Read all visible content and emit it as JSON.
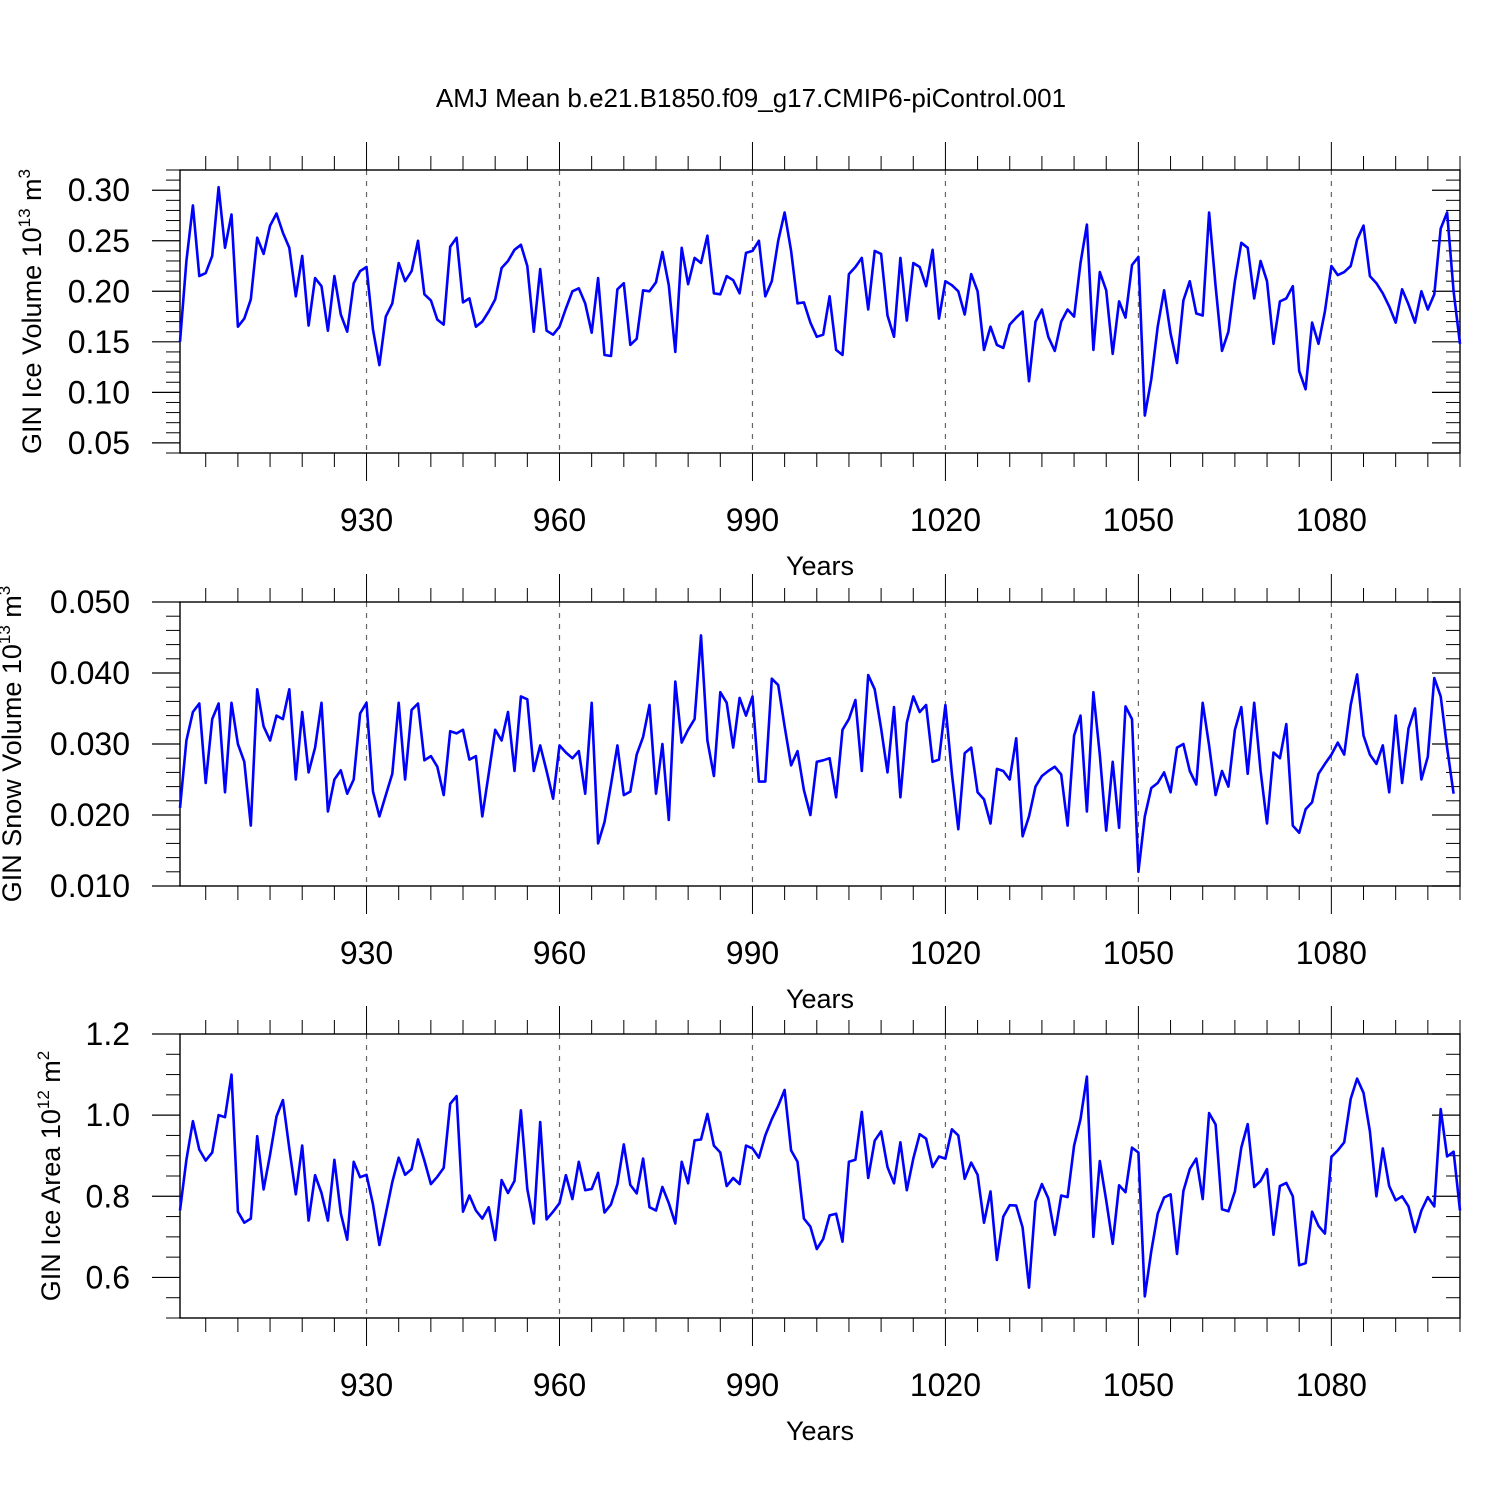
{
  "chart_data": {
    "title": "AMJ Mean b.e21.B1850.f09_g17.CMIP6-piControl.001",
    "line_color": "#0000ff",
    "grid_color": "#666666",
    "x": [
      901,
      902,
      903,
      904,
      905,
      906,
      907,
      908,
      909,
      910,
      911,
      912,
      913,
      914,
      915,
      916,
      917,
      918,
      919,
      920,
      921,
      922,
      923,
      924,
      925,
      926,
      927,
      928,
      929,
      930,
      931,
      932,
      933,
      934,
      935,
      936,
      937,
      938,
      939,
      940,
      941,
      942,
      943,
      944,
      945,
      946,
      947,
      948,
      949,
      950,
      951,
      952,
      953,
      954,
      955,
      956,
      957,
      958,
      959,
      960,
      961,
      962,
      963,
      964,
      965,
      966,
      967,
      968,
      969,
      970,
      971,
      972,
      973,
      974,
      975,
      976,
      977,
      978,
      979,
      980,
      981,
      982,
      983,
      984,
      985,
      986,
      987,
      988,
      989,
      990,
      991,
      992,
      993,
      994,
      995,
      996,
      997,
      998,
      999,
      1000,
      1001,
      1002,
      1003,
      1004,
      1005,
      1006,
      1007,
      1008,
      1009,
      1010,
      1011,
      1012,
      1013,
      1014,
      1015,
      1016,
      1017,
      1018,
      1019,
      1020,
      1021,
      1022,
      1023,
      1024,
      1025,
      1026,
      1027,
      1028,
      1029,
      1030,
      1031,
      1032,
      1033,
      1034,
      1035,
      1036,
      1037,
      1038,
      1039,
      1040,
      1041,
      1042,
      1043,
      1044,
      1045,
      1046,
      1047,
      1048,
      1049,
      1050,
      1051,
      1052,
      1053,
      1054,
      1055,
      1056,
      1057,
      1058,
      1059,
      1060,
      1061,
      1062,
      1063,
      1064,
      1065,
      1066,
      1067,
      1068,
      1069,
      1070,
      1071,
      1072,
      1073,
      1074,
      1075,
      1076,
      1077,
      1078,
      1079,
      1080,
      1081,
      1082,
      1083,
      1084,
      1085,
      1086,
      1087,
      1088,
      1089,
      1090,
      1091,
      1092,
      1093,
      1094,
      1095,
      1096,
      1097,
      1098,
      1099,
      1100
    ],
    "panels": [
      {
        "name": "ice-volume",
        "ylabel_main": "GIN Ice Volume 10",
        "ylabel_exp": "13",
        "ylabel_unit": " m",
        "ylabel_unit_exp": "3",
        "xlabel": "Years",
        "xlim": [
          901,
          1100
        ],
        "ylim": [
          0.04,
          0.32
        ],
        "yticks": [
          0.05,
          0.1,
          0.15,
          0.2,
          0.25,
          0.3
        ],
        "ytick_labels": [
          "0.05",
          "0.10",
          "0.15",
          "0.20",
          "0.25",
          "0.30"
        ],
        "yminor": [
          0.04,
          0.06,
          0.07,
          0.08,
          0.09,
          0.11,
          0.12,
          0.13,
          0.14,
          0.16,
          0.17,
          0.18,
          0.19,
          0.21,
          0.22,
          0.23,
          0.24,
          0.26,
          0.27,
          0.28,
          0.29,
          0.31,
          0.32
        ],
        "xticks": [
          930,
          960,
          990,
          1020,
          1050,
          1080
        ],
        "xtick_labels": [
          "930",
          "960",
          "990",
          "1020",
          "1050",
          "1080"
        ],
        "values": [
          0.15,
          0.23,
          0.285,
          0.215,
          0.218,
          0.235,
          0.303,
          0.243,
          0.276,
          0.165,
          0.173,
          0.192,
          0.253,
          0.237,
          0.265,
          0.277,
          0.258,
          0.243,
          0.195,
          0.235,
          0.166,
          0.213,
          0.205,
          0.161,
          0.215,
          0.177,
          0.16,
          0.208,
          0.22,
          0.224,
          0.162,
          0.127,
          0.175,
          0.188,
          0.228,
          0.21,
          0.22,
          0.25,
          0.197,
          0.191,
          0.172,
          0.167,
          0.244,
          0.253,
          0.189,
          0.193,
          0.165,
          0.17,
          0.18,
          0.192,
          0.223,
          0.23,
          0.241,
          0.246,
          0.225,
          0.16,
          0.222,
          0.161,
          0.157,
          0.165,
          0.183,
          0.2,
          0.203,
          0.188,
          0.159,
          0.213,
          0.137,
          0.136,
          0.202,
          0.208,
          0.147,
          0.153,
          0.201,
          0.2,
          0.209,
          0.239,
          0.206,
          0.14,
          0.243,
          0.207,
          0.233,
          0.228,
          0.255,
          0.198,
          0.197,
          0.215,
          0.211,
          0.198,
          0.238,
          0.24,
          0.25,
          0.195,
          0.21,
          0.25,
          0.278,
          0.24,
          0.188,
          0.189,
          0.169,
          0.155,
          0.157,
          0.195,
          0.142,
          0.137,
          0.217,
          0.224,
          0.233,
          0.182,
          0.24,
          0.237,
          0.176,
          0.155,
          0.233,
          0.171,
          0.228,
          0.224,
          0.205,
          0.241,
          0.173,
          0.21,
          0.206,
          0.2,
          0.177,
          0.217,
          0.2,
          0.142,
          0.165,
          0.147,
          0.144,
          0.167,
          0.174,
          0.18,
          0.111,
          0.17,
          0.182,
          0.155,
          0.141,
          0.17,
          0.182,
          0.175,
          0.228,
          0.266,
          0.142,
          0.219,
          0.201,
          0.138,
          0.19,
          0.174,
          0.226,
          0.234,
          0.077,
          0.113,
          0.165,
          0.201,
          0.158,
          0.129,
          0.191,
          0.21,
          0.178,
          0.176,
          0.278,
          0.205,
          0.141,
          0.16,
          0.21,
          0.248,
          0.243,
          0.193,
          0.23,
          0.21,
          0.148,
          0.19,
          0.193,
          0.205,
          0.121,
          0.103,
          0.169,
          0.148,
          0.18,
          0.225,
          0.216,
          0.219,
          0.225,
          0.251,
          0.265,
          0.215,
          0.208,
          0.198,
          0.185,
          0.169,
          0.202,
          0.187,
          0.169,
          0.2,
          0.182,
          0.197,
          0.262,
          0.278,
          0.2,
          0.148
        ]
      },
      {
        "name": "snow-volume",
        "ylabel_main": "GIN Snow Volume 10",
        "ylabel_exp": "13",
        "ylabel_unit": " m",
        "ylabel_unit_exp": "3",
        "xlabel": "Years",
        "xlim": [
          901,
          1100
        ],
        "ylim": [
          0.01,
          0.05
        ],
        "yticks": [
          0.01,
          0.02,
          0.03,
          0.04,
          0.05
        ],
        "ytick_labels": [
          "0.010",
          "0.020",
          "0.030",
          "0.040",
          "0.050"
        ],
        "yminor": [
          0.012,
          0.014,
          0.016,
          0.018,
          0.022,
          0.024,
          0.026,
          0.028,
          0.032,
          0.034,
          0.036,
          0.038,
          0.042,
          0.044,
          0.046,
          0.048
        ],
        "xticks": [
          930,
          960,
          990,
          1020,
          1050,
          1080
        ],
        "xtick_labels": [
          "930",
          "960",
          "990",
          "1020",
          "1050",
          "1080"
        ],
        "values": [
          0.021,
          0.0305,
          0.0345,
          0.0357,
          0.0245,
          0.0335,
          0.0357,
          0.0232,
          0.0358,
          0.03,
          0.0275,
          0.0185,
          0.0377,
          0.0325,
          0.0305,
          0.034,
          0.0335,
          0.0377,
          0.025,
          0.0345,
          0.026,
          0.0295,
          0.0358,
          0.0205,
          0.025,
          0.0263,
          0.023,
          0.025,
          0.0343,
          0.0358,
          0.0233,
          0.0198,
          0.0228,
          0.0258,
          0.0358,
          0.025,
          0.0348,
          0.0357,
          0.0277,
          0.0283,
          0.0268,
          0.0228,
          0.0318,
          0.0315,
          0.032,
          0.0278,
          0.0283,
          0.0198,
          0.0258,
          0.032,
          0.0305,
          0.0345,
          0.0262,
          0.0367,
          0.0363,
          0.0262,
          0.0298,
          0.0262,
          0.0223,
          0.0298,
          0.0288,
          0.028,
          0.029,
          0.023,
          0.0358,
          0.016,
          0.019,
          0.0243,
          0.0298,
          0.0228,
          0.0233,
          0.0285,
          0.031,
          0.0355,
          0.023,
          0.03,
          0.0193,
          0.0388,
          0.0302,
          0.032,
          0.0335,
          0.0453,
          0.0305,
          0.0255,
          0.0373,
          0.0358,
          0.0295,
          0.0365,
          0.034,
          0.0367,
          0.0247,
          0.0247,
          0.0392,
          0.0383,
          0.0325,
          0.027,
          0.029,
          0.0235,
          0.02,
          0.0275,
          0.0277,
          0.028,
          0.0225,
          0.032,
          0.0335,
          0.0362,
          0.0262,
          0.0397,
          0.0377,
          0.0322,
          0.026,
          0.0352,
          0.0225,
          0.033,
          0.0367,
          0.0345,
          0.0355,
          0.0275,
          0.0278,
          0.0355,
          0.0258,
          0.018,
          0.0287,
          0.0295,
          0.0232,
          0.0222,
          0.0188,
          0.0265,
          0.0262,
          0.025,
          0.0308,
          0.017,
          0.0198,
          0.024,
          0.0255,
          0.0262,
          0.0268,
          0.0257,
          0.0185,
          0.0312,
          0.034,
          0.0205,
          0.0373,
          0.0285,
          0.0178,
          0.0275,
          0.0182,
          0.0353,
          0.0335,
          0.012,
          0.0198,
          0.0238,
          0.0245,
          0.026,
          0.0232,
          0.0295,
          0.03,
          0.0262,
          0.0243,
          0.0358,
          0.0298,
          0.0228,
          0.0262,
          0.024,
          0.032,
          0.0352,
          0.0258,
          0.0358,
          0.0262,
          0.0188,
          0.0288,
          0.028,
          0.0328,
          0.0185,
          0.0175,
          0.0208,
          0.0218,
          0.0258,
          0.0272,
          0.0285,
          0.0302,
          0.0285,
          0.0355,
          0.0398,
          0.0312,
          0.0285,
          0.0272,
          0.0298,
          0.0232,
          0.034,
          0.0245,
          0.0322,
          0.035,
          0.025,
          0.0282,
          0.0393,
          0.0367,
          0.0295,
          0.023
        ]
      },
      {
        "name": "ice-area",
        "ylabel_main": "GIN Ice Area 10",
        "ylabel_exp": "12",
        "ylabel_unit": " m",
        "ylabel_unit_exp": "2",
        "xlabel": "Years",
        "xlim": [
          901,
          1100
        ],
        "ylim": [
          0.5,
          1.2
        ],
        "yticks": [
          0.6,
          0.8,
          1.0,
          1.2
        ],
        "ytick_labels": [
          "0.6",
          "0.8",
          "1.0",
          "1.2"
        ],
        "yminor": [
          0.5,
          0.55,
          0.65,
          0.7,
          0.75,
          0.85,
          0.9,
          0.95,
          1.05,
          1.1,
          1.15
        ],
        "xticks": [
          930,
          960,
          990,
          1020,
          1050,
          1080
        ],
        "xtick_labels": [
          "930",
          "960",
          "990",
          "1020",
          "1050",
          "1080"
        ],
        "values": [
          0.765,
          0.89,
          0.985,
          0.915,
          0.888,
          0.908,
          1.0,
          0.995,
          1.1,
          0.762,
          0.735,
          0.745,
          0.948,
          0.817,
          0.903,
          0.997,
          1.037,
          0.918,
          0.805,
          0.925,
          0.74,
          0.852,
          0.808,
          0.74,
          0.89,
          0.758,
          0.693,
          0.885,
          0.847,
          0.853,
          0.78,
          0.68,
          0.757,
          0.835,
          0.895,
          0.853,
          0.867,
          0.94,
          0.888,
          0.83,
          0.848,
          0.87,
          1.028,
          1.047,
          0.762,
          0.802,
          0.765,
          0.745,
          0.773,
          0.692,
          0.84,
          0.808,
          0.838,
          1.012,
          0.818,
          0.733,
          0.983,
          0.743,
          0.762,
          0.783,
          0.852,
          0.793,
          0.885,
          0.815,
          0.818,
          0.858,
          0.76,
          0.78,
          0.83,
          0.928,
          0.828,
          0.807,
          0.893,
          0.773,
          0.765,
          0.823,
          0.783,
          0.733,
          0.885,
          0.832,
          0.938,
          0.94,
          1.003,
          0.925,
          0.908,
          0.825,
          0.845,
          0.83,
          0.925,
          0.918,
          0.895,
          0.95,
          0.99,
          1.023,
          1.062,
          0.913,
          0.885,
          0.745,
          0.725,
          0.67,
          0.695,
          0.753,
          0.757,
          0.688,
          0.885,
          0.89,
          1.008,
          0.845,
          0.937,
          0.96,
          0.872,
          0.832,
          0.933,
          0.815,
          0.893,
          0.953,
          0.942,
          0.872,
          0.898,
          0.893,
          0.965,
          0.95,
          0.843,
          0.883,
          0.853,
          0.735,
          0.812,
          0.643,
          0.75,
          0.778,
          0.777,
          0.723,
          0.575,
          0.787,
          0.83,
          0.795,
          0.705,
          0.802,
          0.798,
          0.925,
          0.99,
          1.095,
          0.7,
          0.887,
          0.79,
          0.683,
          0.827,
          0.81,
          0.92,
          0.908,
          0.553,
          0.665,
          0.757,
          0.797,
          0.805,
          0.658,
          0.813,
          0.867,
          0.893,
          0.793,
          1.005,
          0.977,
          0.768,
          0.763,
          0.812,
          0.92,
          0.978,
          0.823,
          0.838,
          0.867,
          0.705,
          0.825,
          0.833,
          0.8,
          0.63,
          0.635,
          0.762,
          0.727,
          0.708,
          0.897,
          0.913,
          0.933,
          1.04,
          1.09,
          1.055,
          0.96,
          0.8,
          0.918,
          0.825,
          0.79,
          0.8,
          0.775,
          0.712,
          0.765,
          0.798,
          0.775,
          1.015,
          0.898,
          0.91,
          0.765
        ]
      }
    ]
  }
}
